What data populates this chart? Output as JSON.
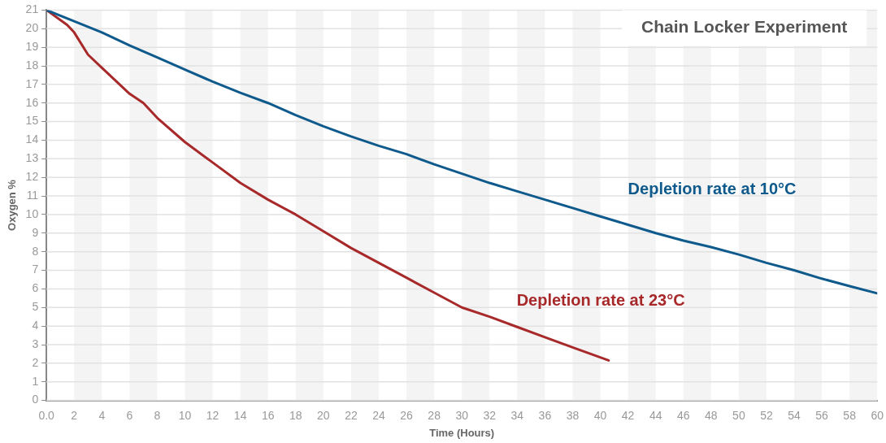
{
  "chart_data": {
    "type": "line",
    "title": "Chain Locker Experiment",
    "xlabel": "Time (Hours)",
    "ylabel": "Oxygen %",
    "xlim": [
      0,
      60
    ],
    "xticks": [
      {
        "value": 0,
        "label": "0.0"
      },
      2,
      4,
      6,
      8,
      10,
      12,
      14,
      16,
      18,
      20,
      22,
      24,
      26,
      28,
      30,
      32,
      34,
      36,
      38,
      40,
      42,
      44,
      46,
      48,
      50,
      52,
      54,
      56,
      58,
      60
    ],
    "ylim": [
      0,
      21
    ],
    "yticks": [
      0,
      1,
      2,
      3,
      4,
      5,
      6,
      7,
      8,
      9,
      10,
      11,
      12,
      13,
      14,
      15,
      16,
      17,
      18,
      19,
      20,
      21
    ],
    "grid": true,
    "legend": false,
    "marker": "none",
    "line_style": "solid",
    "series": [
      {
        "name": "Depletion rate at 10°C",
        "color": "#0f5a8c",
        "x": [
          0,
          2,
          4,
          6,
          8,
          10,
          12,
          14,
          16,
          18,
          20,
          22,
          24,
          26,
          28,
          30,
          32,
          34,
          36,
          38,
          40,
          42,
          44,
          46,
          48,
          50,
          52,
          54,
          56,
          58,
          60
        ],
        "values": [
          21,
          20.4,
          19.8,
          19.1,
          18.45,
          17.8,
          17.15,
          16.55,
          16.0,
          15.35,
          14.75,
          14.2,
          13.7,
          13.25,
          12.7,
          12.2,
          11.7,
          11.25,
          10.8,
          10.35,
          9.9,
          9.45,
          9.0,
          8.6,
          8.25,
          7.85,
          7.4,
          7.0,
          6.55,
          6.15,
          5.76
        ]
      },
      {
        "name": "Depletion rate at 23°C",
        "color": "#a8292a",
        "x": [
          0,
          1.5,
          2,
          3,
          4,
          6,
          7,
          8,
          10,
          12,
          14,
          16,
          18,
          20,
          22,
          24,
          26,
          28,
          30,
          32,
          34,
          36,
          38,
          40.6
        ],
        "values": [
          21,
          20.2,
          19.8,
          18.6,
          17.9,
          16.5,
          16.0,
          15.2,
          13.9,
          12.8,
          11.7,
          10.8,
          10.0,
          9.1,
          8.2,
          7.4,
          6.6,
          5.8,
          5.0,
          4.5,
          3.95,
          3.4,
          2.85,
          2.15
        ]
      }
    ]
  }
}
